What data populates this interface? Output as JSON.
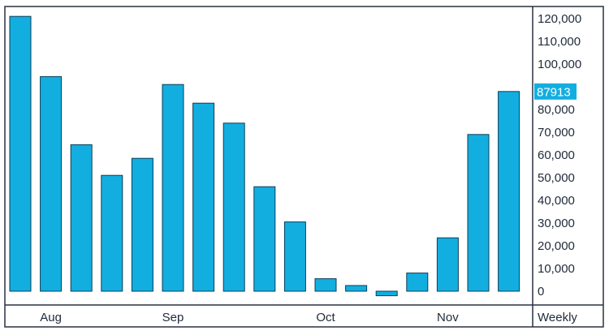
{
  "chart_data": {
    "type": "bar",
    "frequency_label": "Weekly",
    "x_axis_months": [
      {
        "label": "Aug",
        "bar_index": 1
      },
      {
        "label": "Sep",
        "bar_index": 5
      },
      {
        "label": "Oct",
        "bar_index": 10
      },
      {
        "label": "Nov",
        "bar_index": 14
      }
    ],
    "values": [
      121000,
      94500,
      64500,
      51000,
      58500,
      91000,
      82800,
      74000,
      46000,
      30500,
      5500,
      2500,
      -2000,
      8000,
      23500,
      69000,
      87913
    ],
    "ylim": [
      -2500,
      125000
    ],
    "yticks": [
      0,
      10000,
      20000,
      30000,
      40000,
      50000,
      60000,
      70000,
      80000,
      90000,
      100000,
      110000,
      120000
    ],
    "ytick_labels": [
      "0",
      "10,000",
      "20,000",
      "30,000",
      "40,000",
      "50,000",
      "60,000",
      "70,000",
      "80,000",
      "",
      "100,000",
      "110,000",
      "120,000"
    ],
    "last_value_marker": {
      "value": 87913,
      "label": "87913"
    },
    "colors": {
      "bar_fill": "#13aee0",
      "bar_stroke": "#0b3e58",
      "frame": "#2a3140",
      "marker_bg": "#13aee0",
      "text": "#1f2a3a"
    }
  }
}
